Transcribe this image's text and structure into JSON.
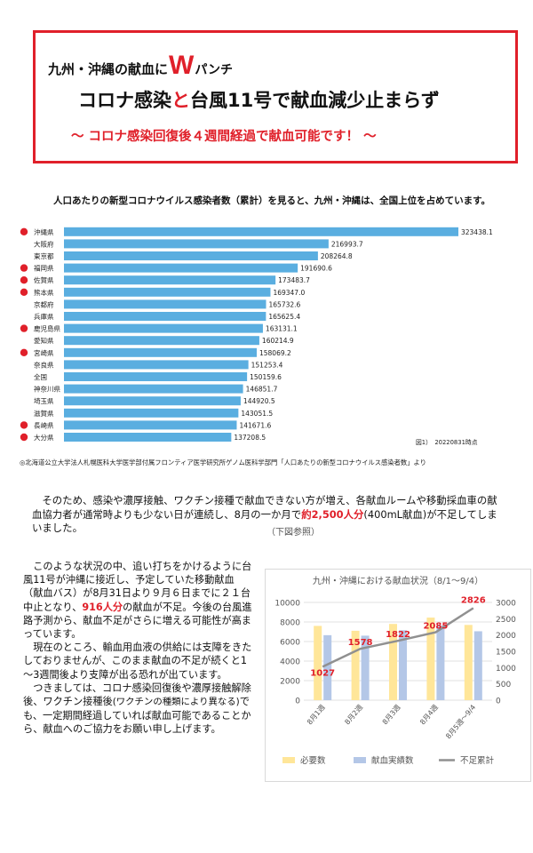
{
  "header": {
    "line1_pre": "九州・沖縄の献血に",
    "line1_w": "W",
    "line1_post": "パンチ",
    "line2_a": "コロナ感染",
    "line2_b": "と",
    "line2_c": "台風11号で献血減少止まらず",
    "line3": "～ コロナ感染回復後４週間経過で献血可能です！ ～"
  },
  "intro": "人口あたりの新型コロナウイルス感染者数（累計）を見ると、九州・沖縄は、全国上位を占めています。",
  "bar_chart_note": "図1）　20220831時点",
  "source": "◎北海道公立大学法人札幌医科大学医学部付属フロンティア医学研究所ゲノム医科学部門「人口あたりの新型コロナウイルス感染者数」より",
  "para1": {
    "text_a": "そのため、感染や濃厚接触、ワクチン接種で献血できない方が増え、各献血ルームや移動採血車の献血協力者が通常時よりも少ない日が連続し、8月の一か月で",
    "highlight": "約2,500人分",
    "text_b": "(400mL献血)が不足してしまいました。",
    "ref": "（下図参照）"
  },
  "para2": {
    "p1_a": "このような状況の中、追い打ちをかけるように台風11号が沖縄に接近し、予定していた移動献血（献血バス）が8月31日より９月６日までに２１台中止となり、",
    "p1_hl": "916人分",
    "p1_b": "の献血が不足。今後の台風進路予測から、献血不足がさらに増える可能性が高まっています。",
    "p2": "現在のところ、輸血用血液の供給には支障をきたしておりませんが、このまま献血の不足が続くと1～3週間後より支障が出る恐れが出ています。",
    "p3_a": "つきましては、コロナ感染回復後や濃厚接触解除後、ワクチン接種後",
    "p3_sm": "(ワクチンの種類により異なる)",
    "p3_b": "でも、一定期間経過していれば献血可能であることから、献血へのご協力をお願い申し上げます。"
  },
  "colors": {
    "accent": "#e0202a",
    "bar_blue": "#5aaee0",
    "need": "#ffe699",
    "actual": "#b4c7e7",
    "line": "#909090"
  },
  "chart_data": [
    {
      "type": "bar",
      "orientation": "horizontal",
      "title": "",
      "categories": [
        "沖縄県",
        "大阪府",
        "東京都",
        "福岡県",
        "佐賀県",
        "熊本県",
        "京都府",
        "兵庫県",
        "鹿児島県",
        "愛知県",
        "宮崎県",
        "奈良県",
        "全国",
        "神奈川県",
        "埼玉県",
        "滋賀県",
        "長崎県",
        "大分県"
      ],
      "values": [
        323438.1,
        216993.7,
        208264.8,
        191690.6,
        173483.7,
        169347.0,
        165732.6,
        165625.4,
        163131.1,
        160214.9,
        158069.2,
        151253.4,
        150159.6,
        146851.7,
        144920.5,
        143051.5,
        141671.6,
        137208.5
      ],
      "value_labels": [
        "323438.1",
        "216993.7",
        "208264.8",
        "191690.6",
        "173483.7",
        "169347.0",
        "165732.6",
        "165625.4",
        "163131.1",
        "160214.9",
        "158069.2",
        "151253.4",
        "150159.6",
        "146851.7",
        "144920.5",
        "143051.5",
        "141671.6",
        "137208.5"
      ],
      "marked": [
        true,
        false,
        false,
        true,
        true,
        true,
        false,
        false,
        true,
        false,
        true,
        false,
        false,
        false,
        false,
        false,
        true,
        true
      ],
      "xlim": [
        0,
        330000
      ],
      "grid": false,
      "legend": "none"
    },
    {
      "type": "bar",
      "title": "九州・沖縄における献血状況（8/1～9/4）",
      "categories": [
        "8月1週",
        "8月2週",
        "8月3週",
        "8月4週",
        "8月5週～9/4"
      ],
      "series": [
        {
          "name": "必要数",
          "type": "bar",
          "axis": "left",
          "values": [
            7600,
            7100,
            7800,
            8450,
            7700
          ]
        },
        {
          "name": "献血実績数",
          "type": "bar",
          "axis": "left",
          "values": [
            6650,
            6600,
            7150,
            7650,
            7050
          ]
        },
        {
          "name": "不足累計",
          "type": "line",
          "axis": "right",
          "values": [
            1027,
            1578,
            1822,
            2085,
            2826
          ]
        }
      ],
      "line_labels": [
        "1027",
        "1578",
        "1822",
        "2085",
        "2826"
      ],
      "ylim_left": [
        0,
        10000
      ],
      "yticks_left": [
        "0",
        "2000",
        "4000",
        "6000",
        "8000",
        "10000"
      ],
      "ylim_right": [
        0,
        3000
      ],
      "yticks_right": [
        "0",
        "500",
        "1000",
        "1500",
        "2000",
        "2500",
        "3000"
      ],
      "grid": true,
      "legend": "bottom"
    }
  ]
}
